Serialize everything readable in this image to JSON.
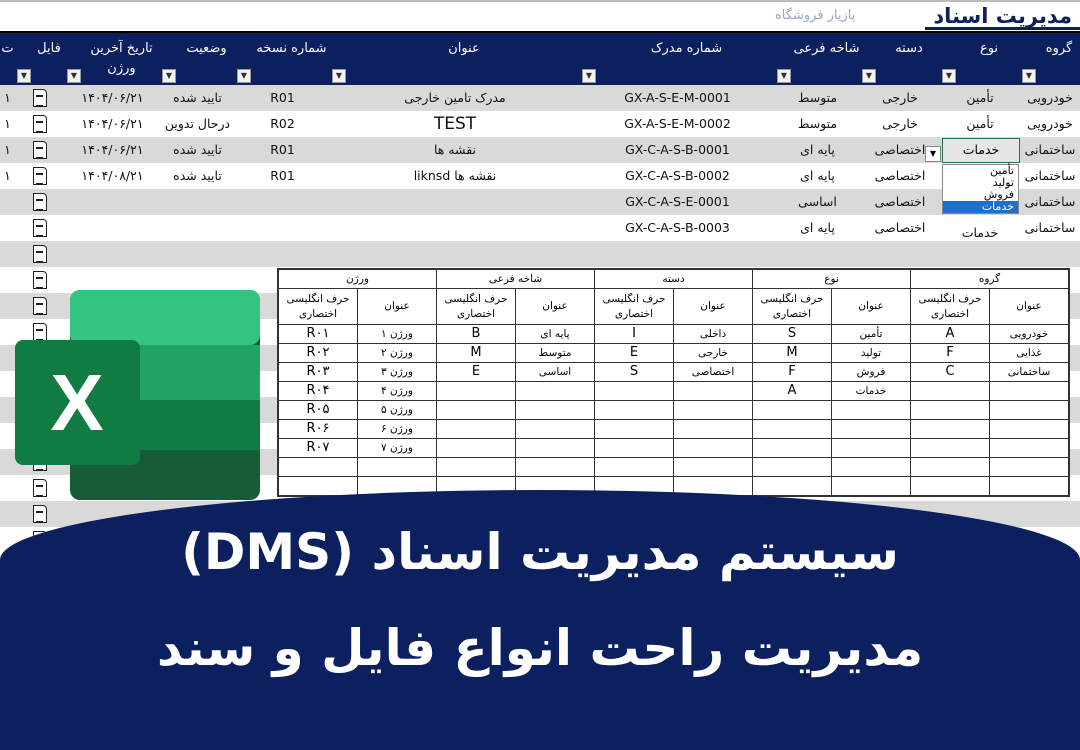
{
  "app": {
    "title": "مدیریت اسناد",
    "logo_text": "پازیار فروشگاه"
  },
  "colors": {
    "header": "#0c1f5e",
    "row_alt": "#d9d9d9",
    "excel_green": "#217346",
    "selection": "#1e6fc8"
  },
  "columns": [
    "گروه",
    "نوع",
    "دسته",
    "شاخه فرعی",
    "شماره مدرک",
    "عنوان",
    "شماره نسخه",
    "وضعیت",
    "تاریخ آخرین ورژن",
    "فایل",
    "ت"
  ],
  "rows": [
    {
      "group": "خودرویی",
      "type": "تأمین",
      "category": "خارجی",
      "branch": "متوسط",
      "doc_no": "GX-A-S-E-M-0001",
      "title": "مدرک تامین خارجی",
      "version": "R01",
      "status": "تایید شده",
      "date": "۱۴۰۴/۰۶/۲۱",
      "n": "۱"
    },
    {
      "group": "خودرویی",
      "type": "تأمین",
      "category": "خارجی",
      "branch": "متوسط",
      "doc_no": "GX-A-S-E-M-0002",
      "title": "TEST",
      "version": "R02",
      "status": "درحال تدوین",
      "date": "۱۴۰۴/۰۶/۲۱",
      "n": "۱"
    },
    {
      "group": "ساختمانی",
      "type": "خدمات",
      "category": "اختصاصی",
      "branch": "پایه ای",
      "doc_no": "GX-C-A-S-B-0001",
      "title": "نقشه ها",
      "version": "R01",
      "status": "تایید شده",
      "date": "۱۴۰۴/۰۶/۲۱",
      "n": "۱"
    },
    {
      "group": "ساختمانی",
      "type": "",
      "category": "اختصاصی",
      "branch": "پایه ای",
      "doc_no": "GX-C-A-S-B-0002",
      "title": "نقشه ها liknsd",
      "version": "R01",
      "status": "تایید شده",
      "date": "۱۴۰۴/۰۸/۲۱",
      "n": "۱"
    },
    {
      "group": "ساختمانی",
      "type": "",
      "category": "اختصاصی",
      "branch": "اساسی",
      "doc_no": "GX-C-A-S-E-0001",
      "title": "",
      "version": "",
      "status": "",
      "date": "",
      "n": ""
    },
    {
      "group": "ساختمانی",
      "type": "خدمات",
      "category": "اختصاصی",
      "branch": "پایه ای",
      "doc_no": "GX-C-A-S-B-0003",
      "title": "",
      "version": "",
      "status": "",
      "date": "",
      "n": ""
    }
  ],
  "dropdown": {
    "options": [
      "تأمین",
      "تولید",
      "فروش",
      "خدمات"
    ],
    "selected": "خدمات"
  },
  "lookup": {
    "groups": [
      "گروه",
      "نوع",
      "دسته",
      "شاخه فرعی",
      "ورژن"
    ],
    "sub_title": "عنوان",
    "sub_abbr": "حرف انگلیسی اختصاری",
    "rows": [
      [
        "خودرویی",
        "A",
        "تأمین",
        "S",
        "داخلی",
        "I",
        "پایه ای",
        "B",
        "ورژن ۱",
        "R۰۱"
      ],
      [
        "غذایی",
        "F",
        "تولید",
        "M",
        "خارجی",
        "E",
        "متوسط",
        "M",
        "ورژن ۲",
        "R۰۲"
      ],
      [
        "ساختمانی",
        "C",
        "فروش",
        "F",
        "اختصاصی",
        "S",
        "اساسی",
        "E",
        "ورژن ۳",
        "R۰۳"
      ],
      [
        "",
        "",
        "خدمات",
        "A",
        "",
        "",
        "",
        "",
        "ورژن ۴",
        "R۰۴"
      ],
      [
        "",
        "",
        "",
        "",
        "",
        "",
        "",
        "",
        "ورژن ۵",
        "R۰۵"
      ],
      [
        "",
        "",
        "",
        "",
        "",
        "",
        "",
        "",
        "ورژن ۶",
        "R۰۶"
      ],
      [
        "",
        "",
        "",
        "",
        "",
        "",
        "",
        "",
        "ورژن ۷",
        "R۰۷"
      ],
      [
        "",
        "",
        "",
        "",
        "",
        "",
        "",
        "",
        "",
        ""
      ],
      [
        "",
        "",
        "",
        "",
        "",
        "",
        "",
        "",
        "",
        ""
      ]
    ]
  },
  "banner": {
    "line1": "سیستم مدیریت اسناد (DMS)",
    "line2": "مدیریت راحت انواع فایل و سند"
  },
  "excel_logo": {
    "letter": "X"
  }
}
